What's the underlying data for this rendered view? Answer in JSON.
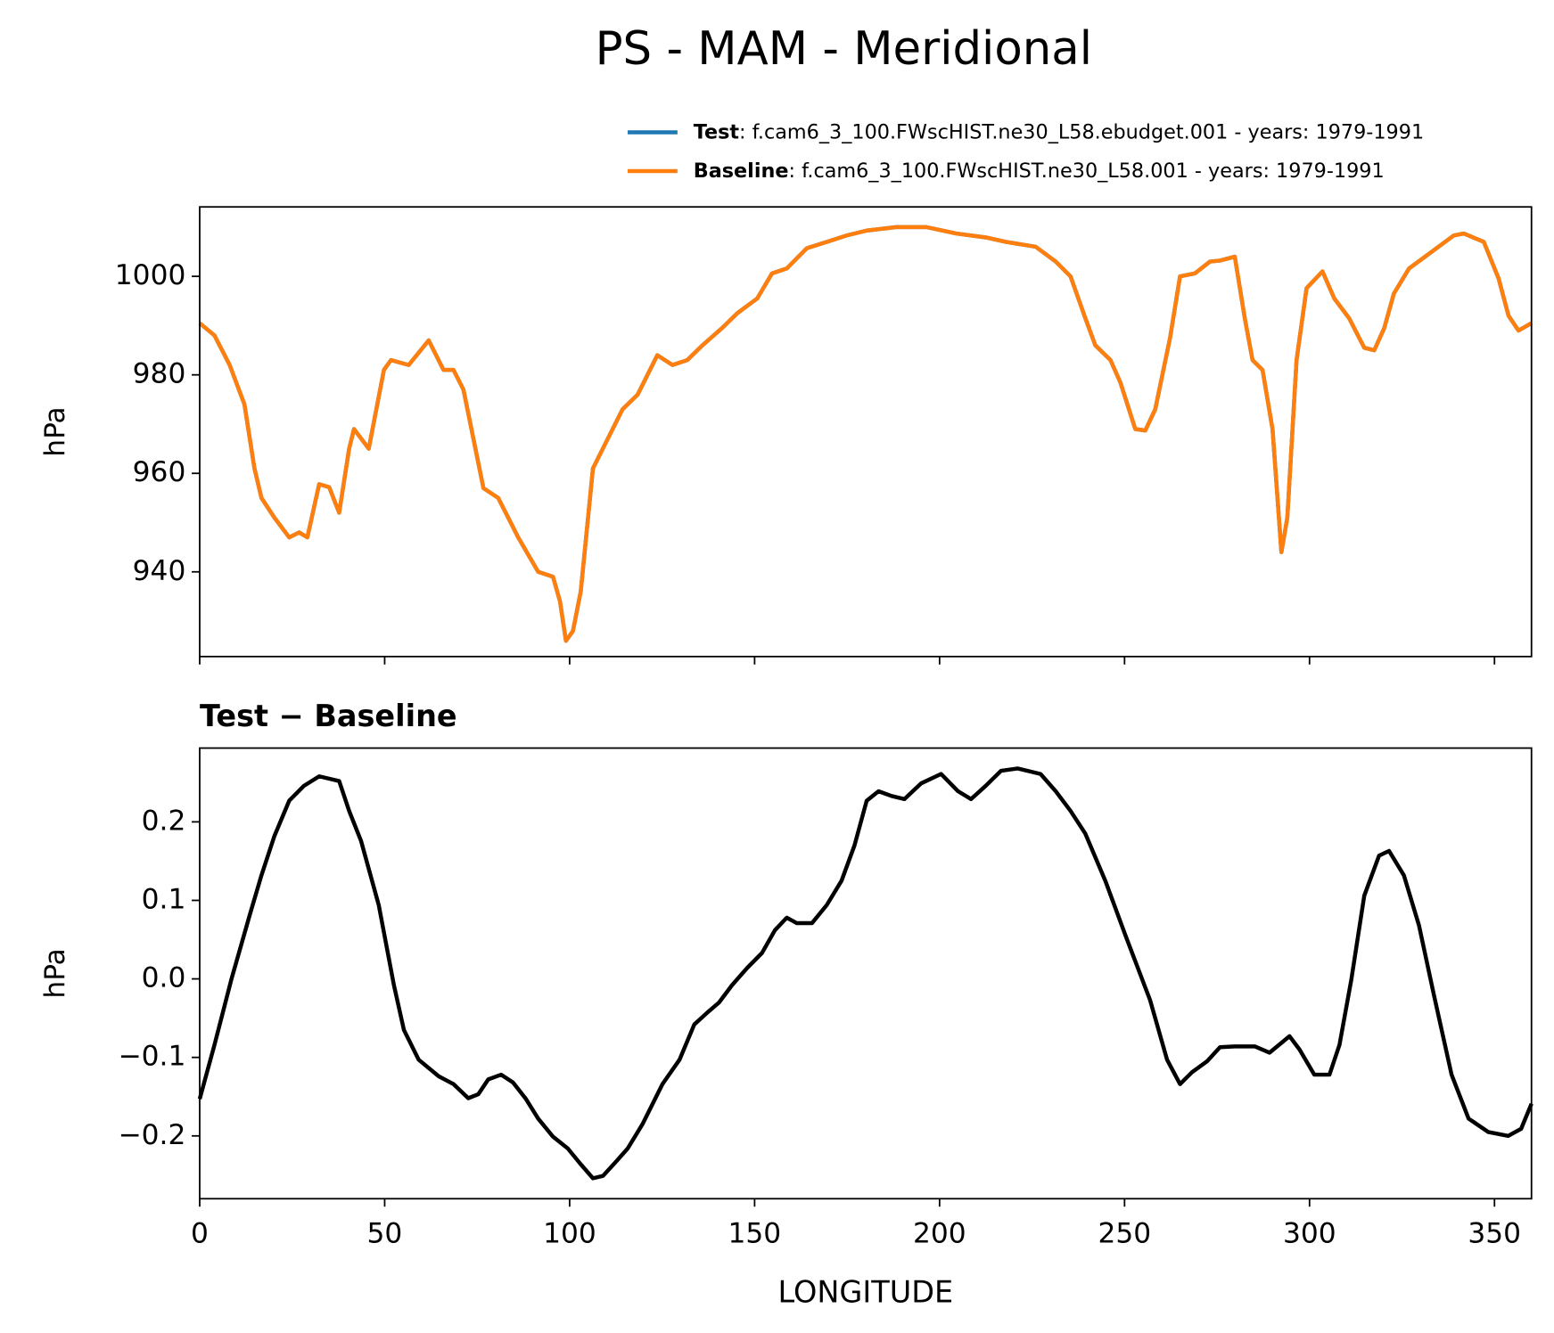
{
  "title": "PS - MAM - Meridional",
  "chart_data": [
    {
      "type": "line",
      "ylabel": "hPa",
      "xlim": [
        0,
        360
      ],
      "xticks": [
        0,
        50,
        100,
        150,
        200,
        250,
        300,
        350
      ],
      "ylim": [
        922.8,
        1014.1
      ],
      "yticks": [
        940,
        960,
        980,
        1000
      ],
      "legend": "upper right",
      "x": [
        0,
        4.0,
        8.1,
        12.1,
        14.8,
        16.7,
        20.2,
        24.2,
        26.9,
        29.1,
        32.3,
        35.0,
        37.7,
        40.4,
        41.7,
        45.7,
        49.8,
        51.7,
        56.5,
        61.9,
        65.9,
        68.6,
        71.3,
        76.7,
        80.7,
        86.1,
        91.5,
        95.5,
        97.4,
        99.0,
        100.9,
        103.0,
        106.3,
        110.3,
        114.3,
        118.4,
        123.7,
        127.8,
        131.8,
        135.9,
        141.2,
        145.3,
        150.7,
        154.7,
        158.7,
        164.1,
        169.5,
        174.9,
        180.3,
        188.3,
        196.4,
        204.5,
        212.5,
        217.9,
        226.0,
        231.4,
        235.4,
        239.4,
        242.1,
        246.2,
        248.9,
        252.9,
        255.6,
        258.3,
        262.3,
        265.0,
        269.0,
        273.1,
        275.8,
        279.8,
        282.5,
        284.6,
        287.3,
        290.0,
        292.4,
        294.0,
        296.5,
        299.2,
        303.5,
        306.7,
        310.7,
        314.8,
        317.5,
        320.2,
        322.8,
        326.9,
        333.6,
        339.0,
        341.7,
        347.1,
        351.1,
        353.8,
        356.5,
        360
      ],
      "series": [
        {
          "name": "Test",
          "description": ": f.cam6_3_100.FWscHIST.ne30_L58.ebudget.001 - years: 1979-1991",
          "color": "#1f77b4",
          "values": [
            990.5,
            988,
            982,
            974,
            961,
            955,
            951,
            947,
            948,
            947,
            957.8,
            957.2,
            952,
            965,
            969,
            965,
            981,
            983,
            982,
            987,
            981,
            981,
            977,
            957,
            955,
            947,
            940,
            939,
            934,
            926,
            928,
            936,
            961,
            967,
            973,
            976,
            984,
            982,
            983,
            986,
            989.5,
            992.5,
            995.5,
            1000.6,
            1001.6,
            1005.7,
            1007,
            1008.3,
            1009.3,
            1010,
            1010,
            1008.7,
            1007.9,
            1007,
            1006,
            1003,
            1000,
            991.5,
            986,
            983,
            978.4,
            969,
            968.7,
            973,
            987.5,
            1000,
            1000.6,
            1003,
            1003.2,
            1004,
            991.5,
            983,
            981,
            969,
            944,
            951,
            983,
            997.6,
            1001,
            995.5,
            991.5,
            985.5,
            985,
            989.5,
            996.5,
            1001.6,
            1005.3,
            1008.3,
            1008.7,
            1007,
            999.6,
            992,
            989,
            990.5
          ]
        },
        {
          "name": "Baseline",
          "description": ": f.cam6_3_100.FWscHIST.ne30_L58.001 - years: 1979-1991",
          "color": "#ff7f0e",
          "values": [
            990.5,
            988,
            982,
            974,
            961,
            955,
            951,
            947,
            948,
            947,
            957.8,
            957.2,
            952,
            965,
            969,
            965,
            981,
            983,
            982,
            987,
            981,
            981,
            977,
            957,
            955,
            947,
            940,
            939,
            934,
            926,
            928,
            936,
            961,
            967,
            973,
            976,
            984,
            982,
            983,
            986,
            989.5,
            992.5,
            995.5,
            1000.6,
            1001.6,
            1005.7,
            1007,
            1008.3,
            1009.3,
            1010,
            1010,
            1008.7,
            1007.9,
            1007,
            1006,
            1003,
            1000,
            991.5,
            986,
            983,
            978.4,
            969,
            968.7,
            973,
            987.5,
            1000,
            1000.6,
            1003,
            1003.2,
            1004,
            991.5,
            983,
            981,
            969,
            944,
            951,
            983,
            997.6,
            1001,
            995.5,
            991.5,
            985.5,
            985,
            989.5,
            996.5,
            1001.6,
            1005.3,
            1008.3,
            1008.7,
            1007,
            999.6,
            992,
            989,
            990.5
          ]
        }
      ]
    },
    {
      "type": "line",
      "title": "Test − Baseline",
      "xlabel": "LONGITUDE",
      "ylabel": "hPa",
      "xlim": [
        0,
        360
      ],
      "xticks": [
        0,
        50,
        100,
        150,
        200,
        250,
        300,
        350
      ],
      "ylim": [
        -0.28,
        0.294
      ],
      "yticks": [
        {
          "value": -0.2,
          "label": "−0.2"
        },
        {
          "value": -0.1,
          "label": "−0.1"
        },
        {
          "value": 0.0,
          "label": "0.0"
        },
        0.1,
        0.2
      ],
      "x": [
        0,
        4.0,
        8.6,
        13.5,
        16.7,
        20.2,
        24.2,
        28.2,
        32.3,
        37.7,
        40.4,
        43.6,
        48.4,
        52.5,
        55.2,
        59.2,
        64.6,
        68.6,
        72.6,
        75.3,
        78.0,
        81.5,
        84.7,
        88.2,
        91.5,
        95.5,
        99.5,
        102.8,
        106.3,
        109.0,
        112.5,
        115.7,
        119.7,
        125.1,
        129.7,
        133.7,
        137.2,
        140.4,
        143.9,
        148.0,
        152.0,
        155.5,
        158.7,
        161.4,
        165.5,
        169.5,
        173.5,
        177.0,
        180.3,
        183.5,
        187.0,
        190.5,
        195.0,
        200.4,
        205.0,
        208.5,
        212.5,
        216.6,
        221.1,
        227.3,
        231.4,
        235.4,
        239.4,
        244.8,
        250.2,
        256.9,
        261.5,
        265.0,
        268.2,
        272.3,
        275.8,
        279.8,
        285.2,
        289.2,
        294.6,
        297.3,
        301.3,
        305.4,
        308.1,
        311.3,
        314.8,
        318.8,
        321.5,
        325.5,
        329.6,
        333.6,
        338.4,
        343.0,
        348.3,
        353.7,
        357.2,
        360
      ],
      "color": "#000000",
      "values": [
        -0.153,
        -0.084,
        0.0,
        0.081,
        0.132,
        0.182,
        0.227,
        0.246,
        0.258,
        0.252,
        0.214,
        0.176,
        0.094,
        -0.008,
        -0.065,
        -0.103,
        -0.124,
        -0.134,
        -0.152,
        -0.147,
        -0.128,
        -0.122,
        -0.132,
        -0.153,
        -0.178,
        -0.201,
        -0.216,
        -0.235,
        -0.254,
        -0.251,
        -0.233,
        -0.216,
        -0.185,
        -0.134,
        -0.103,
        -0.058,
        -0.043,
        -0.03,
        -0.008,
        0.014,
        0.033,
        0.062,
        0.078,
        0.071,
        0.071,
        0.094,
        0.125,
        0.17,
        0.227,
        0.239,
        0.233,
        0.229,
        0.249,
        0.261,
        0.239,
        0.229,
        0.246,
        0.265,
        0.268,
        0.261,
        0.239,
        0.214,
        0.185,
        0.125,
        0.056,
        -0.027,
        -0.103,
        -0.134,
        -0.119,
        -0.105,
        -0.087,
        -0.086,
        -0.086,
        -0.094,
        -0.073,
        -0.09,
        -0.122,
        -0.122,
        -0.084,
        -0.001,
        0.106,
        0.157,
        0.163,
        0.132,
        0.068,
        -0.02,
        -0.122,
        -0.178,
        -0.195,
        -0.2,
        -0.191,
        -0.159
      ]
    }
  ]
}
